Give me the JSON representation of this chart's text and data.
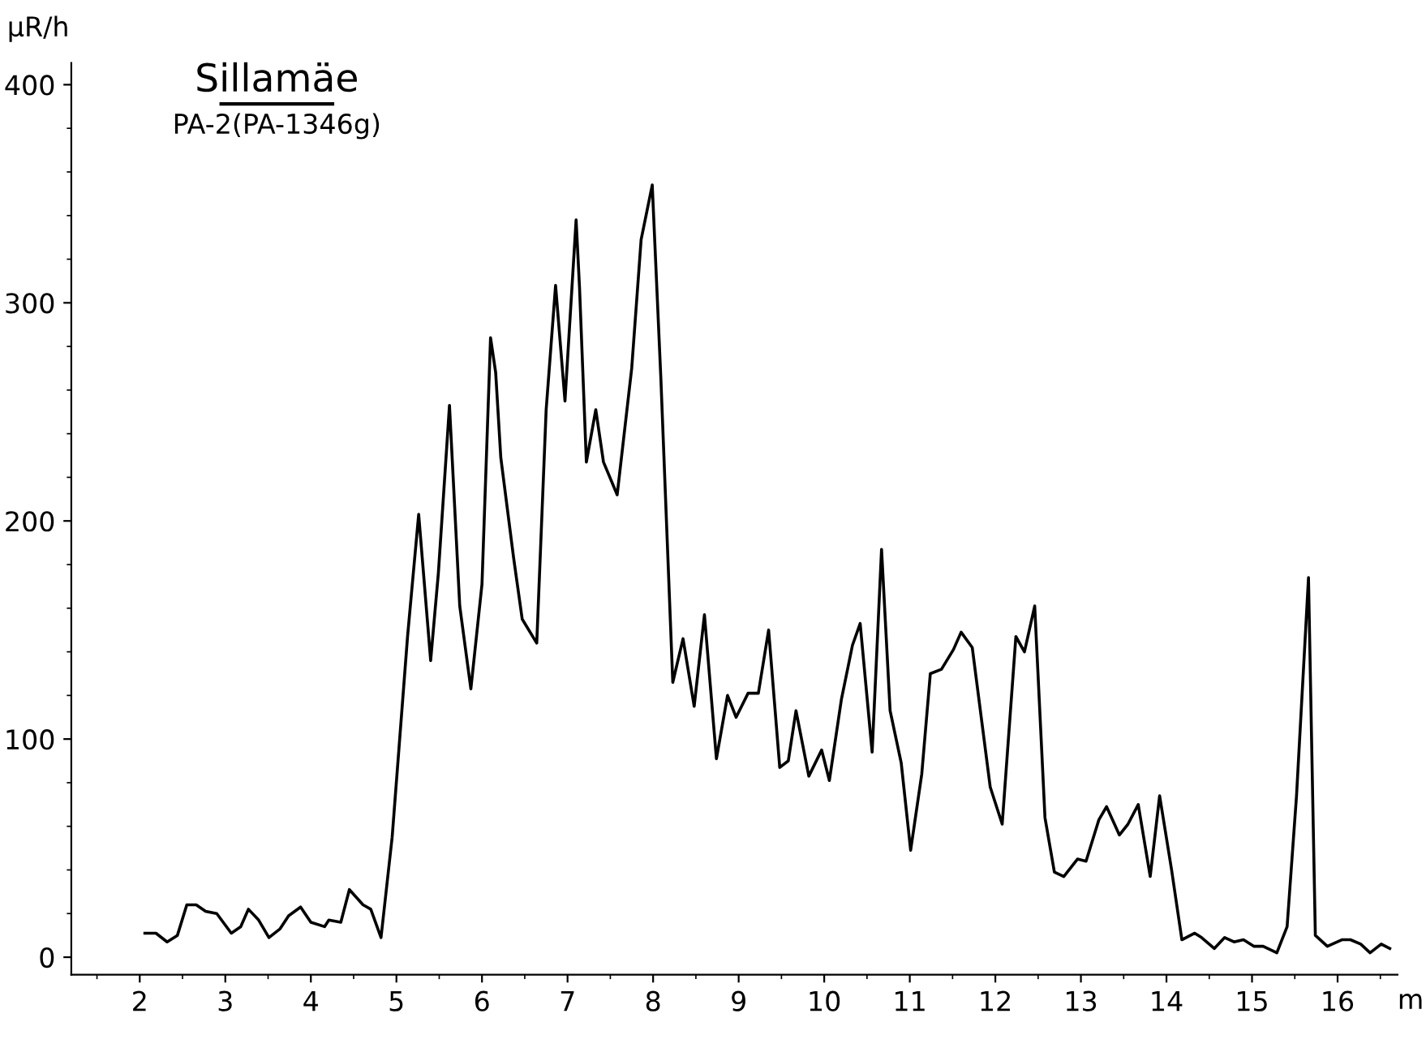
{
  "chart_data": {
    "type": "line",
    "title": "Sillamäe",
    "subtitle": "PA-2(PA-1346g)",
    "xlabel": "m",
    "ylabel": "μR/h",
    "x": [
      2.06,
      2.19,
      2.32,
      2.44,
      2.55,
      2.66,
      2.77,
      2.9,
      3.07,
      3.18,
      3.27,
      3.39,
      3.51,
      3.64,
      3.74,
      3.88,
      4.0,
      4.16,
      4.21,
      4.35,
      4.45,
      4.61,
      4.7,
      4.82,
      4.95,
      5.13,
      5.26,
      5.4,
      5.49,
      5.62,
      5.74,
      5.87,
      6.0,
      6.1,
      6.16,
      6.22,
      6.37,
      6.47,
      6.64,
      6.75,
      6.86,
      6.97,
      7.1,
      7.14,
      7.22,
      7.33,
      7.42,
      7.58,
      7.75,
      7.86,
      7.99,
      8.09,
      8.23,
      8.35,
      8.48,
      8.6,
      8.74,
      8.87,
      8.97,
      9.11,
      9.23,
      9.35,
      9.48,
      9.58,
      9.67,
      9.82,
      9.97,
      10.06,
      10.2,
      10.33,
      10.42,
      10.56,
      10.67,
      10.77,
      10.9,
      11.01,
      11.14,
      11.24,
      11.37,
      11.51,
      11.6,
      11.73,
      11.94,
      12.08,
      12.24,
      12.34,
      12.46,
      12.58,
      12.69,
      12.8,
      12.96,
      13.06,
      13.21,
      13.3,
      13.45,
      13.55,
      13.67,
      13.81,
      13.92,
      14.06,
      14.18,
      14.33,
      14.41,
      14.56,
      14.68,
      14.79,
      14.9,
      15.02,
      15.13,
      15.29,
      15.41,
      15.52,
      15.66,
      15.74,
      15.88,
      16.05,
      16.15,
      16.27,
      16.38,
      16.51,
      16.61
    ],
    "series": [
      {
        "color": "#000000",
        "values": [
          11,
          11,
          7,
          10,
          24,
          24,
          21,
          20,
          11,
          14,
          22,
          17,
          9,
          13,
          19,
          23,
          16,
          14,
          17,
          16,
          31,
          24,
          22,
          9,
          55,
          147,
          203,
          136,
          176,
          253,
          161,
          123,
          171,
          284,
          268,
          229,
          183,
          155,
          144,
          251,
          308,
          255,
          338,
          307,
          227,
          251,
          227,
          212,
          270,
          329,
          354,
          266,
          126,
          146,
          115,
          157,
          91,
          120,
          110,
          121,
          121,
          150,
          87,
          90,
          113,
          83,
          95,
          81,
          118,
          143,
          153,
          94,
          187,
          113,
          89,
          49,
          84,
          130,
          132,
          141,
          149,
          142,
          78,
          61,
          147,
          140,
          161,
          64,
          39,
          37,
          45,
          44,
          63,
          69,
          56,
          61,
          70,
          37,
          74,
          40,
          8,
          11,
          9,
          4,
          9,
          7,
          8,
          5,
          5,
          2,
          14,
          74,
          174,
          10,
          5,
          8,
          8,
          6,
          2,
          6,
          4
        ]
      }
    ],
    "xlim": [
      1.2,
      16.7
    ],
    "ylim": [
      -8,
      410
    ],
    "xticks": [
      2,
      3,
      4,
      5,
      6,
      7,
      8,
      9,
      10,
      11,
      12,
      13,
      14,
      15,
      16
    ],
    "yticks": [
      0,
      100,
      200,
      300,
      400
    ],
    "grid": false,
    "legend": false,
    "marker": "none",
    "line_style": "solid"
  }
}
